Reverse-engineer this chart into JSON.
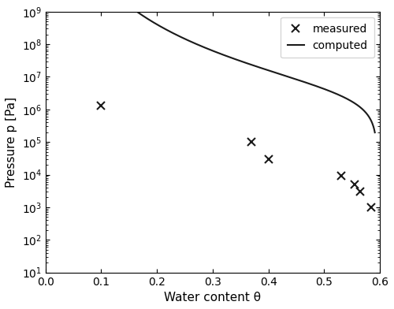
{
  "measured_x": [
    0.1,
    0.37,
    0.4,
    0.53,
    0.555,
    0.565,
    0.585
  ],
  "measured_y": [
    1300000.0,
    100000.0,
    30000.0,
    9000.0,
    5000.0,
    3000.0,
    1000.0
  ],
  "curve_theta_min": 0.002,
  "curve_theta_max": 0.591,
  "vg_theta_r": 0.0,
  "vg_theta_s": 0.595,
  "vg_alpha": 3.5e-07,
  "vg_n": 1.22,
  "xlim": [
    0.0,
    0.6
  ],
  "ylim_low": 10,
  "ylim_high": 1000000000.0,
  "xlabel": "Water content θ",
  "ylabel": "Pressure p [Pa]",
  "legend_measured": "measured",
  "legend_computed": "computed",
  "line_color": "#1a1a1a",
  "marker_color": "#1a1a1a",
  "background_color": "#ffffff",
  "figsize": [
    5.0,
    3.92
  ],
  "dpi": 100
}
